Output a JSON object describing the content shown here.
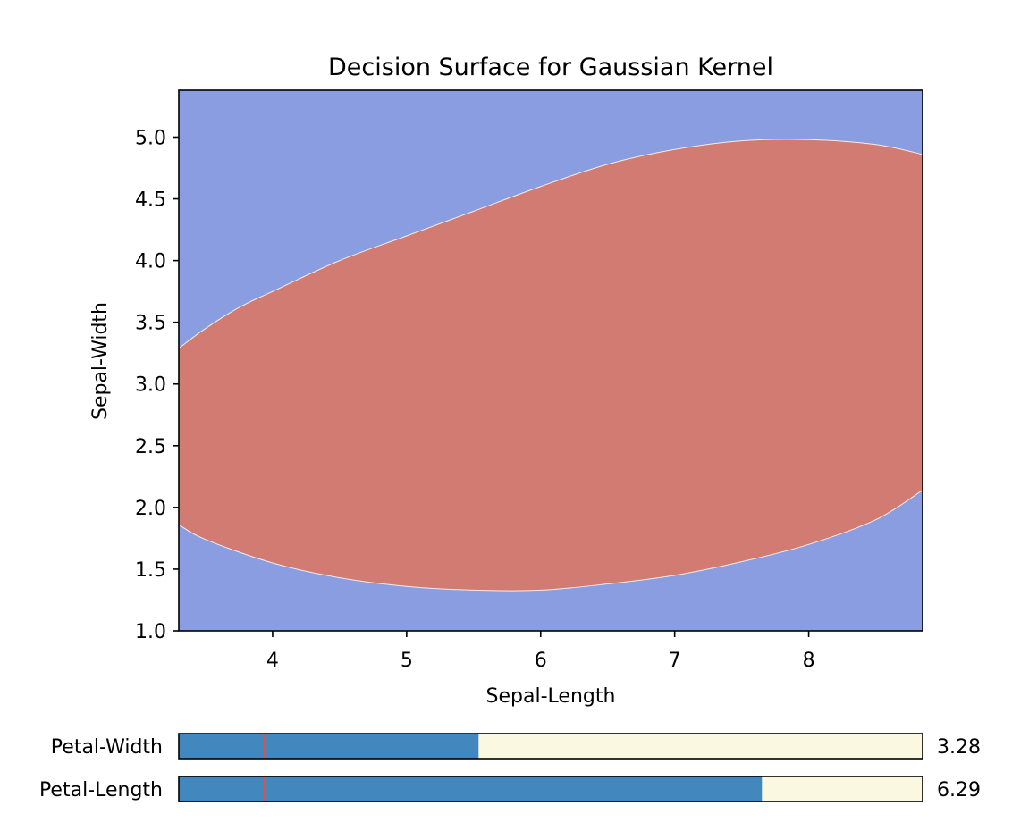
{
  "chart_data": {
    "type": "contour",
    "title": "Decision Surface for Gaussian Kernel",
    "xlabel": "Sepal-Length",
    "ylabel": "Sepal-Width",
    "xlim": [
      3.3,
      8.85
    ],
    "ylim": [
      1.0,
      5.38
    ],
    "xticks": [
      4,
      5,
      6,
      7,
      8
    ],
    "yticks": [
      1.0,
      1.5,
      2.0,
      2.5,
      3.0,
      3.5,
      4.0,
      4.5,
      5.0
    ],
    "grid": false,
    "colors": {
      "background_class": "#8a9de0",
      "region_class": "#d17b72"
    },
    "region_upper_boundary": [
      [
        3.3,
        3.29
      ],
      [
        3.5,
        3.45
      ],
      [
        3.75,
        3.62
      ],
      [
        4.0,
        3.75
      ],
      [
        4.5,
        4.0
      ],
      [
        5.0,
        4.2
      ],
      [
        5.5,
        4.4
      ],
      [
        6.0,
        4.6
      ],
      [
        6.5,
        4.78
      ],
      [
        7.0,
        4.9
      ],
      [
        7.5,
        4.97
      ],
      [
        8.0,
        4.98
      ],
      [
        8.5,
        4.94
      ],
      [
        8.85,
        4.86
      ]
    ],
    "region_lower_boundary": [
      [
        3.3,
        1.86
      ],
      [
        3.5,
        1.74
      ],
      [
        4.0,
        1.55
      ],
      [
        4.5,
        1.43
      ],
      [
        5.0,
        1.36
      ],
      [
        5.5,
        1.33
      ],
      [
        6.0,
        1.33
      ],
      [
        6.5,
        1.38
      ],
      [
        7.0,
        1.45
      ],
      [
        7.5,
        1.56
      ],
      [
        8.0,
        1.7
      ],
      [
        8.5,
        1.9
      ],
      [
        8.85,
        2.14
      ]
    ]
  },
  "sliders": [
    {
      "label": "Petal-Width",
      "value_text": "3.28",
      "fill_fraction": 0.403,
      "marker_fraction": 0.115
    },
    {
      "label": "Petal-Length",
      "value_text": "6.29",
      "fill_fraction": 0.784,
      "marker_fraction": 0.115
    }
  ],
  "slider_colors": {
    "fill": "#4287bd",
    "track": "#fbf8e2",
    "marker": "#d5564a"
  }
}
